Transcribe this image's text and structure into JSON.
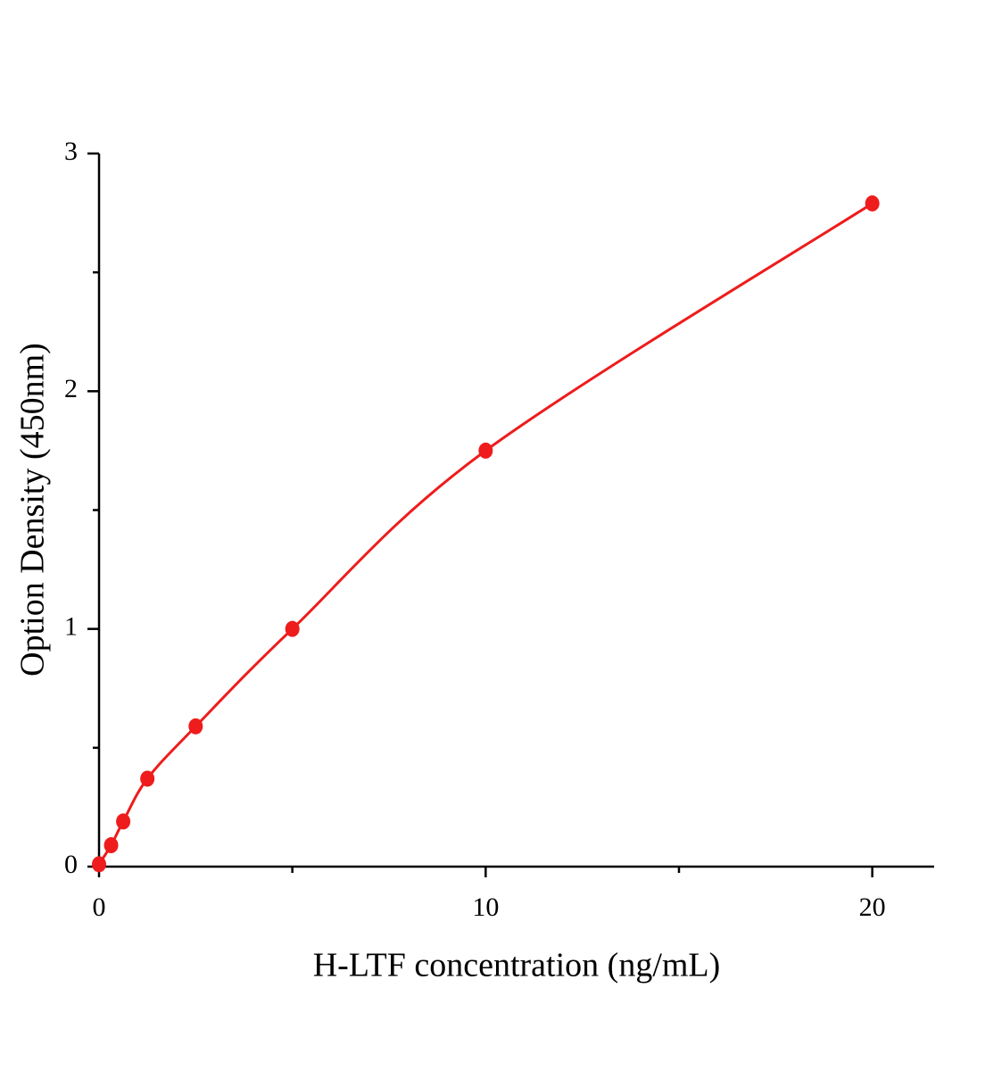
{
  "chart_data": {
    "type": "scatter",
    "x_label": "H-LTF concentration (ng/mL)",
    "y_label": "Option Density (450nm)",
    "x": [
      0,
      0.3125,
      0.625,
      1.25,
      2.5,
      5,
      10,
      20
    ],
    "series": [
      {
        "color": "#ee1c1c",
        "values": [
          0.01,
          0.09,
          0.19,
          0.37,
          0.59,
          1.0,
          1.75,
          2.79
        ]
      }
    ],
    "fit_line": true,
    "xlim": [
      0,
      21.6
    ],
    "ylim": [
      0,
      3
    ],
    "xticks": [
      0,
      10,
      20
    ],
    "yticks": [
      0,
      1,
      2,
      3
    ],
    "xminorticks": [
      5,
      15
    ],
    "yminorticks": [
      0.5,
      1.5,
      2.5
    ]
  }
}
